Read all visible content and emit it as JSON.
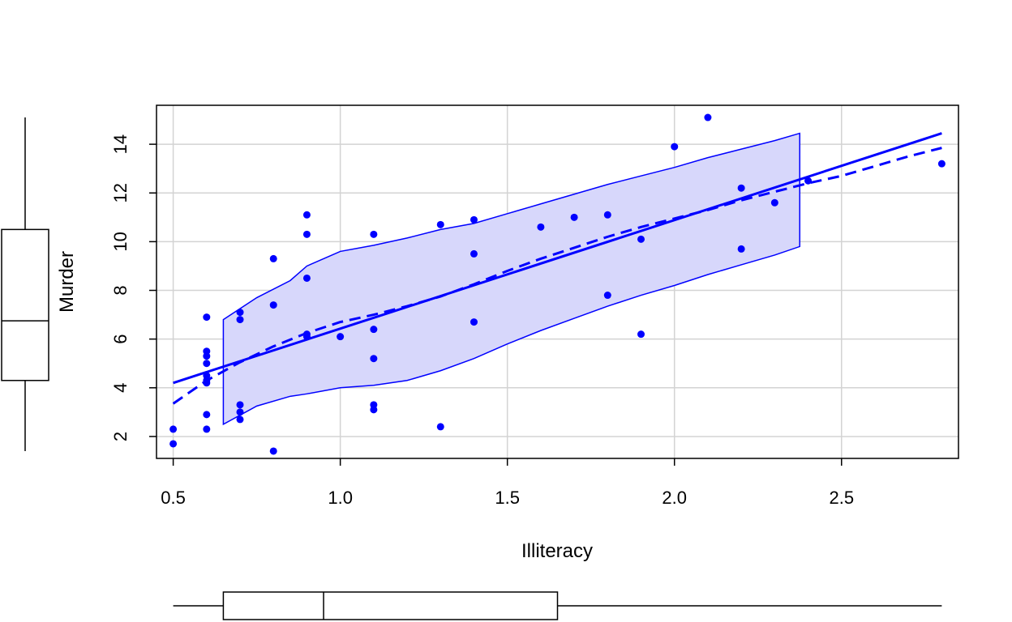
{
  "chart_data": {
    "type": "scatter",
    "title": "",
    "xlabel": "Illiteracy",
    "ylabel": "Murder",
    "xlim": [
      0.45,
      2.85
    ],
    "ylim": [
      1.1,
      15.6
    ],
    "x_ticks": [
      0.5,
      1.0,
      1.5,
      2.0,
      2.5
    ],
    "x_tick_labels": [
      "0.5",
      "1.0",
      "1.5",
      "2.0",
      "2.5"
    ],
    "y_ticks": [
      2,
      4,
      6,
      8,
      10,
      12,
      14
    ],
    "y_tick_labels": [
      "2",
      "4",
      "6",
      "8",
      "10",
      "12",
      "14"
    ],
    "grid": true,
    "colors": {
      "points": "#0000ff",
      "lines": "#0000ff",
      "band_fill": "#d7d7fb",
      "grid": "#d3d3d3",
      "axes": "#000000"
    },
    "points": [
      {
        "x": 0.5,
        "y": 2.3
      },
      {
        "x": 0.5,
        "y": 1.7
      },
      {
        "x": 0.6,
        "y": 6.9
      },
      {
        "x": 0.6,
        "y": 5.5
      },
      {
        "x": 0.6,
        "y": 5.3
      },
      {
        "x": 0.6,
        "y": 5.0
      },
      {
        "x": 0.6,
        "y": 4.5
      },
      {
        "x": 0.6,
        "y": 4.3
      },
      {
        "x": 0.6,
        "y": 4.2
      },
      {
        "x": 0.6,
        "y": 2.9
      },
      {
        "x": 0.6,
        "y": 2.3
      },
      {
        "x": 0.7,
        "y": 7.1
      },
      {
        "x": 0.7,
        "y": 6.8
      },
      {
        "x": 0.7,
        "y": 3.3
      },
      {
        "x": 0.7,
        "y": 3.0
      },
      {
        "x": 0.7,
        "y": 2.7
      },
      {
        "x": 0.8,
        "y": 9.3
      },
      {
        "x": 0.8,
        "y": 7.4
      },
      {
        "x": 0.8,
        "y": 1.4
      },
      {
        "x": 0.9,
        "y": 11.1
      },
      {
        "x": 0.9,
        "y": 10.3
      },
      {
        "x": 0.9,
        "y": 8.5
      },
      {
        "x": 0.9,
        "y": 6.2
      },
      {
        "x": 0.9,
        "y": 6.1
      },
      {
        "x": 1.0,
        "y": 6.1
      },
      {
        "x": 1.1,
        "y": 10.3
      },
      {
        "x": 1.1,
        "y": 6.4
      },
      {
        "x": 1.1,
        "y": 5.2
      },
      {
        "x": 1.1,
        "y": 3.3
      },
      {
        "x": 1.1,
        "y": 3.1
      },
      {
        "x": 1.3,
        "y": 10.7
      },
      {
        "x": 1.3,
        "y": 2.4
      },
      {
        "x": 1.4,
        "y": 10.9
      },
      {
        "x": 1.4,
        "y": 9.5
      },
      {
        "x": 1.4,
        "y": 6.7
      },
      {
        "x": 1.6,
        "y": 10.6
      },
      {
        "x": 1.7,
        "y": 11.0
      },
      {
        "x": 1.8,
        "y": 11.1
      },
      {
        "x": 1.8,
        "y": 7.8
      },
      {
        "x": 1.9,
        "y": 10.1
      },
      {
        "x": 1.9,
        "y": 6.2
      },
      {
        "x": 2.0,
        "y": 13.9
      },
      {
        "x": 2.1,
        "y": 15.1
      },
      {
        "x": 2.2,
        "y": 12.2
      },
      {
        "x": 2.2,
        "y": 9.7
      },
      {
        "x": 2.3,
        "y": 11.6
      },
      {
        "x": 2.4,
        "y": 12.5
      },
      {
        "x": 2.8,
        "y": 13.2
      }
    ],
    "regression_line": {
      "x": [
        0.5,
        2.8
      ],
      "y": [
        4.2,
        14.45
      ]
    },
    "smooth_line": {
      "x": [
        0.5,
        0.6,
        0.7,
        0.8,
        0.9,
        1.0,
        1.1,
        1.2,
        1.3,
        1.4,
        1.5,
        1.6,
        1.7,
        1.8,
        1.9,
        2.0,
        2.1,
        2.2,
        2.3,
        2.4,
        2.5,
        2.6,
        2.7,
        2.8
      ],
      "y": [
        3.35,
        4.3,
        5.05,
        5.7,
        6.25,
        6.7,
        7.0,
        7.35,
        7.75,
        8.25,
        8.8,
        9.3,
        9.75,
        10.2,
        10.6,
        10.95,
        11.3,
        11.7,
        12.05,
        12.4,
        12.7,
        13.1,
        13.5,
        13.85
      ]
    },
    "spread_band": {
      "x": [
        0.65,
        0.75,
        0.85,
        0.9,
        1.0,
        1.1,
        1.2,
        1.3,
        1.4,
        1.5,
        1.6,
        1.7,
        1.8,
        1.9,
        2.0,
        2.1,
        2.2,
        2.3,
        2.375
      ],
      "upper": [
        6.8,
        7.7,
        8.4,
        9.0,
        9.6,
        9.85,
        10.15,
        10.5,
        10.75,
        11.15,
        11.55,
        11.95,
        12.35,
        12.7,
        13.05,
        13.45,
        13.8,
        14.15,
        14.45
      ],
      "lower": [
        2.5,
        3.25,
        3.65,
        3.75,
        4.0,
        4.1,
        4.3,
        4.7,
        5.2,
        5.8,
        6.35,
        6.85,
        7.35,
        7.8,
        8.2,
        8.65,
        9.05,
        9.45,
        9.8
      ]
    },
    "x_boxplot": {
      "min": 0.5,
      "q1": 0.65,
      "median": 0.95,
      "q3": 1.65,
      "max": 2.8
    },
    "y_boxplot": {
      "min": 1.4,
      "q1": 4.3,
      "median": 6.75,
      "q3": 10.5,
      "max": 15.1
    }
  }
}
